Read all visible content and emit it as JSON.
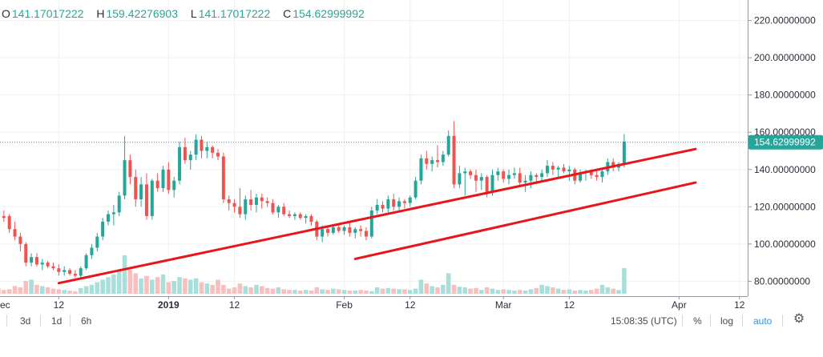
{
  "ohlc": {
    "open_label": "O",
    "open": "141.17017222",
    "high_label": "H",
    "high": "159.42276903",
    "low_label": "L",
    "low": "141.17017222",
    "close_label": "C",
    "close": "154.62999992"
  },
  "colors": {
    "up": "#26a69a",
    "down": "#ef5350",
    "vol_up": "#a9dfdb",
    "vol_down": "#f7bfbd",
    "trendline": "#e8161b",
    "grid": "#eef0f4",
    "price_line": "#26a69a"
  },
  "toolbar": {
    "range_3d": "3d",
    "range_1d": "1d",
    "range_6h": "6h",
    "clock": "15:08:35 (UTC)",
    "percent": "%",
    "log": "log",
    "auto": "auto",
    "settings_icon": "gear-icon"
  },
  "chart_data": {
    "type": "candlestick",
    "y_axis": {
      "ylim": [
        72,
        231
      ],
      "ticks": [
        "220.00000000",
        "200.00000000",
        "180.00000000",
        "160.00000000",
        "140.00000000",
        "120.00000000",
        "100.00000000",
        "80.00000000"
      ],
      "tick_values": [
        220,
        200,
        180,
        160,
        140,
        120,
        100,
        80
      ],
      "last_price": "154.62999992"
    },
    "x_axis": {
      "tick_labels": [
        "ec",
        "12",
        "2019",
        "12",
        "Feb",
        "12",
        "Mar",
        "12",
        "Apr",
        "12"
      ]
    },
    "candles": [
      [
        118,
        119,
        113,
        115
      ],
      [
        115,
        118,
        112,
        114
      ],
      [
        115,
        116,
        106,
        108
      ],
      [
        108,
        112,
        102,
        104
      ],
      [
        104,
        106,
        96,
        100
      ],
      [
        100,
        101,
        88,
        90
      ],
      [
        90,
        95,
        88,
        93
      ],
      [
        93,
        95,
        88,
        89
      ],
      [
        89,
        92,
        86,
        90
      ],
      [
        90,
        91,
        87,
        88
      ],
      [
        88,
        90,
        86,
        87
      ],
      [
        87,
        89,
        83,
        85
      ],
      [
        85,
        88,
        83,
        86
      ],
      [
        86,
        87,
        83,
        84
      ],
      [
        84,
        86,
        82,
        83
      ],
      [
        83,
        88,
        82,
        87
      ],
      [
        87,
        95,
        86,
        94
      ],
      [
        94,
        100,
        92,
        98
      ],
      [
        98,
        106,
        96,
        104
      ],
      [
        104,
        114,
        102,
        112
      ],
      [
        112,
        118,
        110,
        116
      ],
      [
        116,
        121,
        110,
        117
      ],
      [
        117,
        128,
        115,
        126
      ],
      [
        126,
        158,
        124,
        145
      ],
      [
        145,
        148,
        132,
        136
      ],
      [
        136,
        140,
        120,
        124
      ],
      [
        124,
        136,
        120,
        132
      ],
      [
        132,
        138,
        113,
        115
      ],
      [
        115,
        135,
        113,
        134
      ],
      [
        134,
        138,
        128,
        130
      ],
      [
        130,
        142,
        128,
        140
      ],
      [
        140,
        144,
        127,
        129
      ],
      [
        129,
        136,
        125,
        134
      ],
      [
        134,
        155,
        132,
        152
      ],
      [
        152,
        157,
        143,
        145
      ],
      [
        145,
        150,
        140,
        148
      ],
      [
        148,
        159,
        145,
        156
      ],
      [
        156,
        158,
        146,
        150
      ],
      [
        150,
        155,
        146,
        152
      ],
      [
        152,
        153,
        146,
        149
      ],
      [
        149,
        151,
        145,
        147
      ],
      [
        147,
        149,
        122,
        124
      ],
      [
        124,
        126,
        118,
        122
      ],
      [
        122,
        124,
        117,
        120
      ],
      [
        120,
        130,
        114,
        116
      ],
      [
        116,
        126,
        113,
        124
      ],
      [
        124,
        129,
        118,
        121
      ],
      [
        121,
        127,
        117,
        125
      ],
      [
        125,
        127,
        119,
        123
      ],
      [
        123,
        125,
        120,
        122
      ],
      [
        122,
        124,
        116,
        117
      ],
      [
        117,
        121,
        114,
        120
      ],
      [
        120,
        122,
        115,
        116
      ],
      [
        116,
        118,
        114,
        115
      ],
      [
        115,
        117,
        113,
        116
      ],
      [
        116,
        117,
        113,
        114
      ],
      [
        114,
        116,
        111,
        115
      ],
      [
        115,
        116,
        110,
        112
      ],
      [
        112,
        113,
        102,
        104
      ],
      [
        104,
        110,
        101,
        108
      ],
      [
        108,
        110,
        104,
        106
      ],
      [
        106,
        110,
        105,
        109
      ],
      [
        109,
        111,
        106,
        107
      ],
      [
        107,
        110,
        105,
        109
      ],
      [
        109,
        112,
        104,
        106
      ],
      [
        106,
        109,
        103,
        108
      ],
      [
        108,
        110,
        104,
        107
      ],
      [
        107,
        109,
        102,
        104
      ],
      [
        104,
        120,
        103,
        118
      ],
      [
        118,
        124,
        116,
        121
      ],
      [
        121,
        123,
        117,
        119
      ],
      [
        119,
        126,
        117,
        124
      ],
      [
        124,
        127,
        118,
        120
      ],
      [
        120,
        125,
        118,
        123
      ],
      [
        123,
        124,
        119,
        122
      ],
      [
        122,
        126,
        120,
        125
      ],
      [
        125,
        136,
        124,
        134
      ],
      [
        134,
        148,
        132,
        146
      ],
      [
        146,
        150,
        140,
        143
      ],
      [
        143,
        147,
        139,
        145
      ],
      [
        145,
        153,
        141,
        144
      ],
      [
        144,
        150,
        142,
        148
      ],
      [
        148,
        161,
        147,
        158
      ],
      [
        158,
        166,
        130,
        132
      ],
      [
        132,
        142,
        130,
        138
      ],
      [
        138,
        141,
        126,
        139
      ],
      [
        139,
        140,
        135,
        137
      ],
      [
        137,
        140,
        128,
        134
      ],
      [
        134,
        138,
        129,
        136
      ],
      [
        136,
        137,
        125,
        128
      ],
      [
        128,
        140,
        126,
        137
      ],
      [
        137,
        141,
        134,
        139
      ],
      [
        139,
        140,
        133,
        135
      ],
      [
        135,
        140,
        132,
        137
      ],
      [
        137,
        141,
        135,
        138
      ],
      [
        138,
        141,
        131,
        133
      ],
      [
        133,
        137,
        128,
        134
      ],
      [
        134,
        139,
        130,
        137
      ],
      [
        137,
        138,
        132,
        136
      ],
      [
        136,
        140,
        133,
        138
      ],
      [
        138,
        145,
        136,
        142
      ],
      [
        142,
        144,
        137,
        140
      ],
      [
        140,
        142,
        136,
        141
      ],
      [
        141,
        143,
        138,
        139
      ],
      [
        139,
        142,
        134,
        140
      ],
      [
        140,
        141,
        132,
        134
      ],
      [
        134,
        140,
        133,
        138
      ],
      [
        138,
        140,
        134,
        139
      ],
      [
        139,
        140,
        135,
        137
      ],
      [
        137,
        139,
        134,
        136
      ],
      [
        136,
        140,
        133,
        139
      ],
      [
        139,
        146,
        137,
        144
      ],
      [
        144,
        146,
        139,
        141
      ],
      [
        141,
        144,
        139,
        143
      ],
      [
        143,
        159,
        141,
        155
      ]
    ],
    "volumes": [
      8,
      6,
      7,
      12,
      10,
      20,
      22,
      14,
      12,
      10,
      8,
      7,
      6,
      5,
      4,
      9,
      12,
      14,
      18,
      22,
      26,
      30,
      36,
      60,
      38,
      32,
      24,
      28,
      22,
      26,
      30,
      18,
      20,
      26,
      24,
      22,
      24,
      18,
      16,
      14,
      22,
      14,
      8,
      10,
      16,
      12,
      10,
      14,
      12,
      9,
      8,
      10,
      7,
      6,
      6,
      5,
      6,
      5,
      10,
      7,
      6,
      8,
      7,
      6,
      5,
      5,
      6,
      5,
      4,
      10,
      8,
      9,
      8,
      7,
      7,
      6,
      8,
      22,
      16,
      12,
      10,
      14,
      32,
      14,
      11,
      10,
      8,
      9,
      6,
      10,
      8,
      6,
      7,
      6,
      5,
      6,
      5,
      7,
      9,
      14,
      12,
      10,
      8,
      6,
      7,
      5,
      6,
      5,
      6,
      8,
      14,
      10,
      8,
      6,
      40
    ],
    "trendlines": [
      {
        "from_index": 11,
        "from_value": 79,
        "to_index": 127,
        "to_value": 151
      },
      {
        "from_index": 65,
        "from_value": 92,
        "to_index": 127,
        "to_value": 133
      }
    ]
  }
}
